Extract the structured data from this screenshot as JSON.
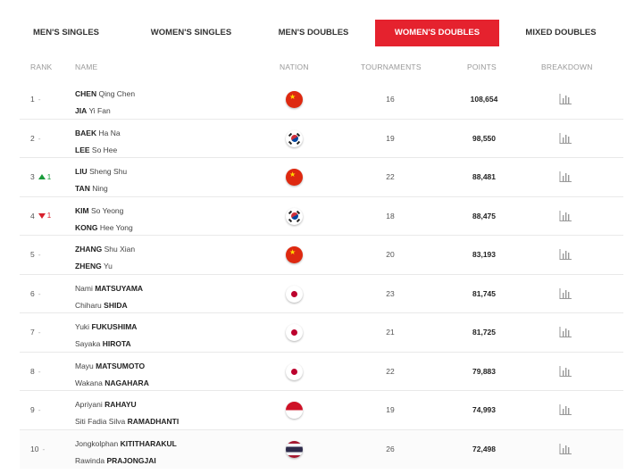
{
  "tabs": [
    {
      "label": "MEN'S SINGLES",
      "active": false
    },
    {
      "label": "WOMEN'S SINGLES",
      "active": false
    },
    {
      "label": "MEN'S DOUBLES",
      "active": false
    },
    {
      "label": "WOMEN'S DOUBLES",
      "active": true
    },
    {
      "label": "MIXED DOUBLES",
      "active": false
    }
  ],
  "columns": {
    "rank": "RANK",
    "name": "NAME",
    "nation": "NATION",
    "tournaments": "TOURNAMENTS",
    "points": "POINTS",
    "breakdown": "BREAKDOWN"
  },
  "accent_color": "#e5222e",
  "rows": [
    {
      "rank": "1",
      "change": "-",
      "change_dir": "none",
      "p1_family": "CHEN",
      "p1_given": "Qing Chen",
      "p1_family_first": true,
      "p2_family": "JIA",
      "p2_given": "Yi Fan",
      "p2_family_first": true,
      "nation_flag": "china-flag-icon",
      "tournaments": "16",
      "points": "108,654"
    },
    {
      "rank": "2",
      "change": "-",
      "change_dir": "none",
      "p1_family": "BAEK",
      "p1_given": "Ha Na",
      "p1_family_first": true,
      "p2_family": "LEE",
      "p2_given": "So Hee",
      "p2_family_first": true,
      "nation_flag": "south-korea-flag-icon",
      "tournaments": "19",
      "points": "98,550"
    },
    {
      "rank": "3",
      "change": "1",
      "change_dir": "up",
      "p1_family": "LIU",
      "p1_given": "Sheng Shu",
      "p1_family_first": true,
      "p2_family": "TAN",
      "p2_given": "Ning",
      "p2_family_first": true,
      "nation_flag": "china-flag-icon",
      "tournaments": "22",
      "points": "88,481"
    },
    {
      "rank": "4",
      "change": "1",
      "change_dir": "down",
      "p1_family": "KIM",
      "p1_given": "So Yeong",
      "p1_family_first": true,
      "p2_family": "KONG",
      "p2_given": "Hee Yong",
      "p2_family_first": true,
      "nation_flag": "south-korea-flag-icon",
      "tournaments": "18",
      "points": "88,475"
    },
    {
      "rank": "5",
      "change": "-",
      "change_dir": "none",
      "p1_family": "ZHANG",
      "p1_given": "Shu Xian",
      "p1_family_first": true,
      "p2_family": "ZHENG",
      "p2_given": "Yu",
      "p2_family_first": true,
      "nation_flag": "china-flag-icon",
      "tournaments": "20",
      "points": "83,193"
    },
    {
      "rank": "6",
      "change": "-",
      "change_dir": "none",
      "p1_family": "MATSUYAMA",
      "p1_given": "Nami",
      "p1_family_first": false,
      "p2_family": "SHIDA",
      "p2_given": "Chiharu",
      "p2_family_first": false,
      "nation_flag": "japan-flag-icon",
      "tournaments": "23",
      "points": "81,745"
    },
    {
      "rank": "7",
      "change": "-",
      "change_dir": "none",
      "p1_family": "FUKUSHIMA",
      "p1_given": "Yuki",
      "p1_family_first": false,
      "p2_family": "HIROTA",
      "p2_given": "Sayaka",
      "p2_family_first": false,
      "nation_flag": "japan-flag-icon",
      "tournaments": "21",
      "points": "81,725"
    },
    {
      "rank": "8",
      "change": "-",
      "change_dir": "none",
      "p1_family": "MATSUMOTO",
      "p1_given": "Mayu",
      "p1_family_first": false,
      "p2_family": "NAGAHARA",
      "p2_given": "Wakana",
      "p2_family_first": false,
      "nation_flag": "japan-flag-icon",
      "tournaments": "22",
      "points": "79,883"
    },
    {
      "rank": "9",
      "change": "-",
      "change_dir": "none",
      "p1_family": "RAHAYU",
      "p1_given": "Apriyani",
      "p1_family_first": false,
      "p2_family": "RAMADHANTI",
      "p2_given": "Siti Fadia Silva",
      "p2_family_first": false,
      "nation_flag": "indonesia-flag-icon",
      "tournaments": "19",
      "points": "74,993"
    },
    {
      "rank": "10",
      "change": "-",
      "change_dir": "none",
      "p1_family": "KITITHARAKUL",
      "p1_given": "Jongkolphan",
      "p1_family_first": false,
      "p2_family": "PRAJONGJAI",
      "p2_given": "Rawinda",
      "p2_family_first": false,
      "nation_flag": "thailand-flag-icon",
      "tournaments": "26",
      "points": "72,498"
    }
  ]
}
